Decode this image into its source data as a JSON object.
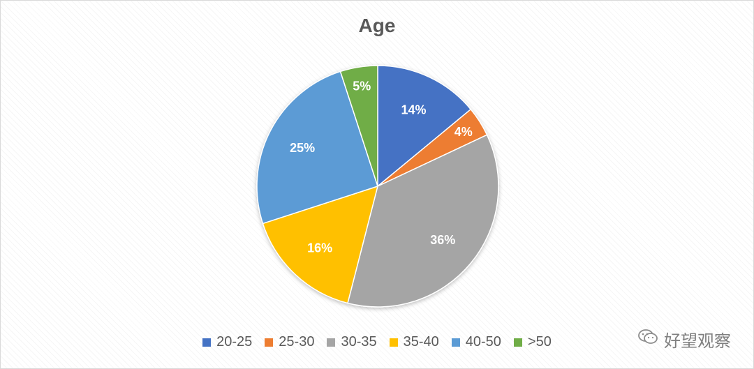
{
  "chart_data": {
    "type": "pie",
    "title": "Age",
    "categories": [
      "20-25",
      "25-30",
      "30-35",
      "35-40",
      "40-50",
      ">50"
    ],
    "values": [
      14,
      4,
      36,
      16,
      25,
      5
    ],
    "labels": [
      "14%",
      "4%",
      "36%",
      "16%",
      "25%",
      "5%"
    ],
    "colors": [
      "#4472C4",
      "#ED7D31",
      "#A5A5A5",
      "#FFC000",
      "#5B9BD5",
      "#70AD47"
    ],
    "legend_position": "bottom"
  },
  "watermark": {
    "icon": "wechat-icon",
    "text": "好望观察"
  }
}
